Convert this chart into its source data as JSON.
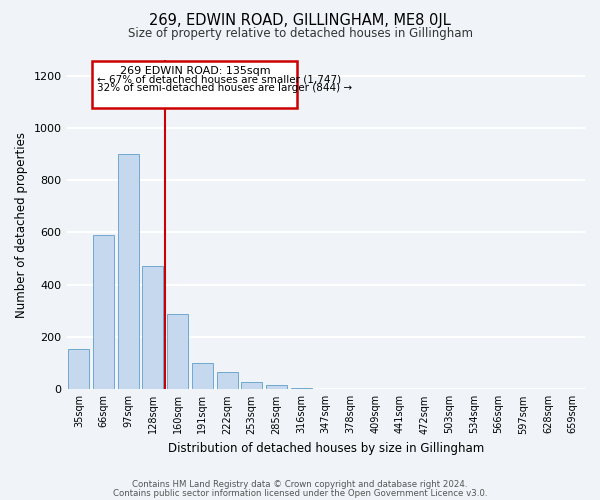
{
  "title": "269, EDWIN ROAD, GILLINGHAM, ME8 0JL",
  "subtitle": "Size of property relative to detached houses in Gillingham",
  "xlabel": "Distribution of detached houses by size in Gillingham",
  "ylabel": "Number of detached properties",
  "bar_color": "#c5d8ed",
  "bar_edge_color": "#6fa8d0",
  "categories": [
    "35sqm",
    "66sqm",
    "97sqm",
    "128sqm",
    "160sqm",
    "191sqm",
    "222sqm",
    "253sqm",
    "285sqm",
    "316sqm",
    "347sqm",
    "378sqm",
    "409sqm",
    "441sqm",
    "472sqm",
    "503sqm",
    "534sqm",
    "566sqm",
    "597sqm",
    "628sqm",
    "659sqm"
  ],
  "values": [
    155,
    590,
    900,
    470,
    290,
    100,
    65,
    28,
    15,
    5,
    3,
    2,
    1,
    0,
    0,
    0,
    0,
    0,
    0,
    0,
    0
  ],
  "ylim": [
    0,
    1260
  ],
  "yticks": [
    0,
    200,
    400,
    600,
    800,
    1000,
    1200
  ],
  "property_label": "269 EDWIN ROAD: 135sqm",
  "annotation_line1": "← 67% of detached houses are smaller (1,747)",
  "annotation_line2": "32% of semi-detached houses are larger (844) →",
  "annotation_box_color": "#ffffff",
  "annotation_box_edge_color": "#cc0000",
  "line_color": "#cc0000",
  "footer_line1": "Contains HM Land Registry data © Crown copyright and database right 2024.",
  "footer_line2": "Contains public sector information licensed under the Open Government Licence v3.0.",
  "bg_color": "#f0f4f8",
  "grid_color": "#ffffff",
  "figsize": [
    6.0,
    5.0
  ],
  "dpi": 100
}
